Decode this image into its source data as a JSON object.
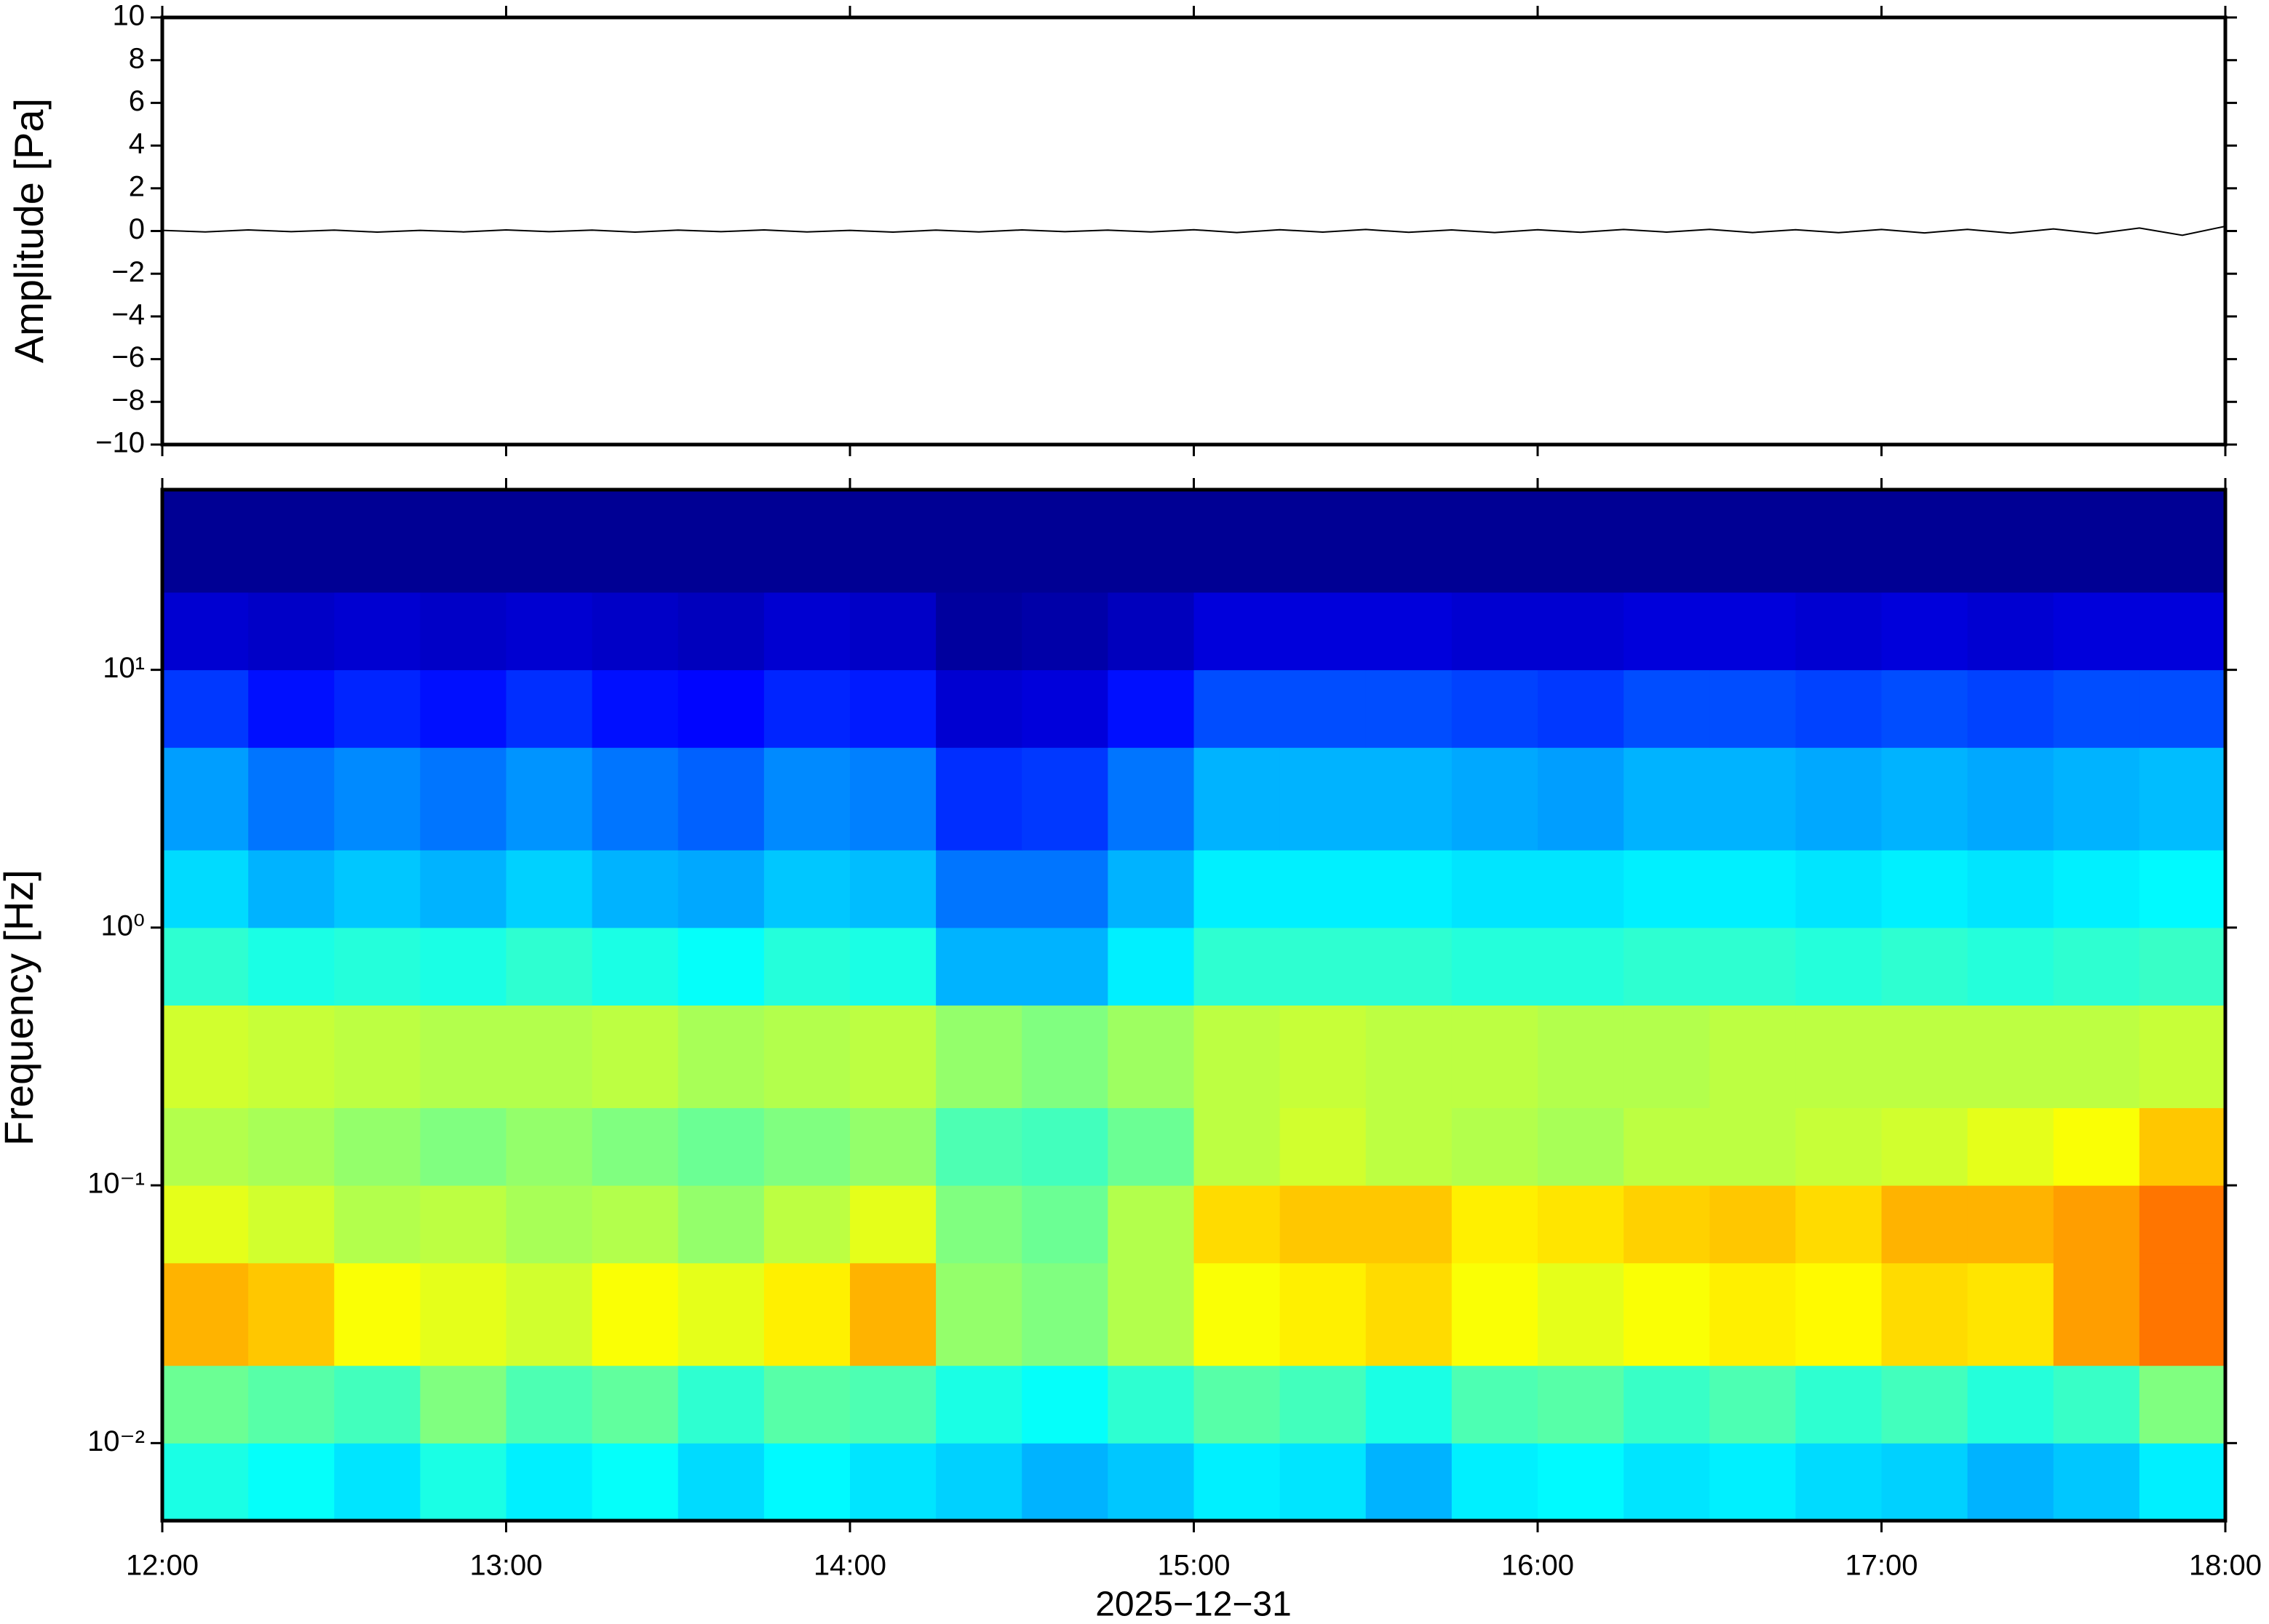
{
  "chart_data": [
    {
      "type": "line",
      "ylabel": "Amplitude [Pa]",
      "color": "#000000",
      "xlim": [
        12,
        18
      ],
      "xticks": [
        12,
        13,
        14,
        15,
        16,
        17,
        18
      ],
      "ylim": [
        -10,
        10
      ],
      "yticks": [
        {
          "value": -10,
          "label": "−10"
        },
        {
          "value": -8,
          "label": "−8"
        },
        {
          "value": -6,
          "label": "−6"
        },
        {
          "value": -4,
          "label": "−4"
        },
        {
          "value": -2,
          "label": "−2"
        },
        0,
        2,
        4,
        6,
        8,
        10
      ],
      "x": [
        12,
        12.125,
        12.25,
        12.375,
        12.5,
        12.625,
        12.75,
        12.875,
        13,
        13.125,
        13.25,
        13.375,
        13.5,
        13.625,
        13.75,
        13.875,
        14,
        14.125,
        14.25,
        14.375,
        14.5,
        14.625,
        14.75,
        14.875,
        15,
        15.125,
        15.25,
        15.375,
        15.5,
        15.625,
        15.75,
        15.875,
        16,
        16.125,
        16.25,
        16.375,
        16.5,
        16.625,
        16.75,
        16.875,
        17,
        17.125,
        17.25,
        17.375,
        17.5,
        17.625,
        17.75,
        17.875,
        18
      ],
      "values": [
        0.03,
        -0.04,
        0.05,
        -0.03,
        0.04,
        -0.05,
        0.03,
        -0.04,
        0.05,
        -0.03,
        0.04,
        -0.05,
        0.04,
        -0.03,
        0.05,
        -0.04,
        0.03,
        -0.05,
        0.04,
        -0.04,
        0.05,
        -0.03,
        0.04,
        -0.04,
        0.06,
        -0.07,
        0.06,
        -0.05,
        0.07,
        -0.06,
        0.05,
        -0.07,
        0.06,
        -0.06,
        0.07,
        -0.05,
        0.08,
        -0.07,
        0.06,
        -0.08,
        0.07,
        -0.09,
        0.08,
        -0.1,
        0.1,
        -0.12,
        0.14,
        -0.2,
        0.22
      ]
    },
    {
      "type": "heatmap",
      "ylabel": "Frequency [Hz]",
      "xlabel": "2025−12−31",
      "colormap": "jet",
      "ylog": true,
      "xlim": [
        12,
        18
      ],
      "xticks": [
        {
          "value": 12,
          "label": "12:00"
        },
        {
          "value": 13,
          "label": "13:00"
        },
        {
          "value": 14,
          "label": "14:00"
        },
        {
          "value": 15,
          "label": "15:00"
        },
        {
          "value": 16,
          "label": "16:00"
        },
        {
          "value": 17,
          "label": "17:00"
        },
        {
          "value": 18,
          "label": "18:00"
        }
      ],
      "ylim": [
        0.005,
        50
      ],
      "yticks": [
        {
          "value": 0.01,
          "label": "10⁻²"
        },
        {
          "value": 0.1,
          "label": "10⁻¹"
        },
        {
          "value": 1,
          "label": "10⁰"
        },
        {
          "value": 10,
          "label": "10¹"
        }
      ],
      "zlim": [
        0,
        1
      ],
      "x_bins": [
        12,
        12.25,
        12.5,
        12.75,
        13,
        13.25,
        13.5,
        13.75,
        14,
        14.25,
        14.5,
        14.75,
        15,
        15.25,
        15.5,
        15.75,
        16,
        16.25,
        16.5,
        16.75,
        17,
        17.25,
        17.5,
        17.75,
        18
      ],
      "y_bins": [
        0.005,
        0.01,
        0.02,
        0.05,
        0.1,
        0.2,
        0.5,
        1,
        2,
        5,
        10,
        20,
        50
      ],
      "z": [
        [
          0.4,
          0.38,
          0.35,
          0.4,
          0.36,
          0.38,
          0.34,
          0.37,
          0.35,
          0.33,
          0.3,
          0.32,
          0.36,
          0.35,
          0.3,
          0.36,
          0.37,
          0.35,
          0.36,
          0.34,
          0.33,
          0.3,
          0.32,
          0.36
        ],
        [
          0.48,
          0.46,
          0.44,
          0.5,
          0.45,
          0.47,
          0.42,
          0.46,
          0.45,
          0.4,
          0.38,
          0.42,
          0.46,
          0.44,
          0.4,
          0.45,
          0.46,
          0.43,
          0.45,
          0.42,
          0.44,
          0.41,
          0.43,
          0.5
        ],
        [
          0.7,
          0.68,
          0.62,
          0.6,
          0.58,
          0.62,
          0.6,
          0.64,
          0.7,
          0.52,
          0.5,
          0.55,
          0.62,
          0.64,
          0.66,
          0.62,
          0.6,
          0.62,
          0.64,
          0.63,
          0.66,
          0.65,
          0.72,
          0.76
        ],
        [
          0.6,
          0.58,
          0.55,
          0.56,
          0.54,
          0.55,
          0.52,
          0.56,
          0.6,
          0.5,
          0.48,
          0.55,
          0.66,
          0.68,
          0.68,
          0.64,
          0.65,
          0.67,
          0.68,
          0.66,
          0.7,
          0.7,
          0.72,
          0.76
        ],
        [
          0.55,
          0.54,
          0.52,
          0.5,
          0.52,
          0.5,
          0.48,
          0.5,
          0.52,
          0.45,
          0.44,
          0.48,
          0.56,
          0.58,
          0.56,
          0.55,
          0.54,
          0.56,
          0.56,
          0.57,
          0.58,
          0.6,
          0.62,
          0.68
        ],
        [
          0.58,
          0.57,
          0.56,
          0.55,
          0.55,
          0.56,
          0.54,
          0.55,
          0.56,
          0.52,
          0.5,
          0.53,
          0.56,
          0.57,
          0.56,
          0.56,
          0.55,
          0.55,
          0.56,
          0.56,
          0.56,
          0.56,
          0.56,
          0.57
        ],
        [
          0.42,
          0.4,
          0.41,
          0.4,
          0.42,
          0.4,
          0.38,
          0.41,
          0.4,
          0.3,
          0.3,
          0.36,
          0.42,
          0.42,
          0.42,
          0.41,
          0.41,
          0.42,
          0.42,
          0.41,
          0.42,
          0.41,
          0.42,
          0.43
        ],
        [
          0.34,
          0.3,
          0.32,
          0.3,
          0.33,
          0.3,
          0.29,
          0.32,
          0.31,
          0.24,
          0.24,
          0.3,
          0.36,
          0.36,
          0.36,
          0.35,
          0.35,
          0.36,
          0.36,
          0.35,
          0.36,
          0.35,
          0.36,
          0.37
        ],
        [
          0.28,
          0.24,
          0.26,
          0.24,
          0.27,
          0.24,
          0.22,
          0.26,
          0.25,
          0.17,
          0.18,
          0.24,
          0.3,
          0.3,
          0.3,
          0.29,
          0.28,
          0.3,
          0.3,
          0.29,
          0.3,
          0.29,
          0.3,
          0.31
        ],
        [
          0.18,
          0.14,
          0.16,
          0.14,
          0.17,
          0.14,
          0.13,
          0.16,
          0.15,
          0.08,
          0.09,
          0.14,
          0.2,
          0.2,
          0.2,
          0.19,
          0.18,
          0.2,
          0.2,
          0.19,
          0.2,
          0.19,
          0.2,
          0.2
        ],
        [
          0.08,
          0.07,
          0.08,
          0.07,
          0.08,
          0.07,
          0.06,
          0.08,
          0.07,
          0.03,
          0.04,
          0.06,
          0.09,
          0.09,
          0.09,
          0.08,
          0.08,
          0.09,
          0.09,
          0.08,
          0.09,
          0.08,
          0.09,
          0.09
        ],
        [
          0.02,
          0.02,
          0.02,
          0.02,
          0.02,
          0.02,
          0.02,
          0.02,
          0.02,
          0.02,
          0.02,
          0.02,
          0.02,
          0.02,
          0.02,
          0.02,
          0.02,
          0.02,
          0.02,
          0.02,
          0.02,
          0.02,
          0.02,
          0.02
        ]
      ]
    }
  ]
}
